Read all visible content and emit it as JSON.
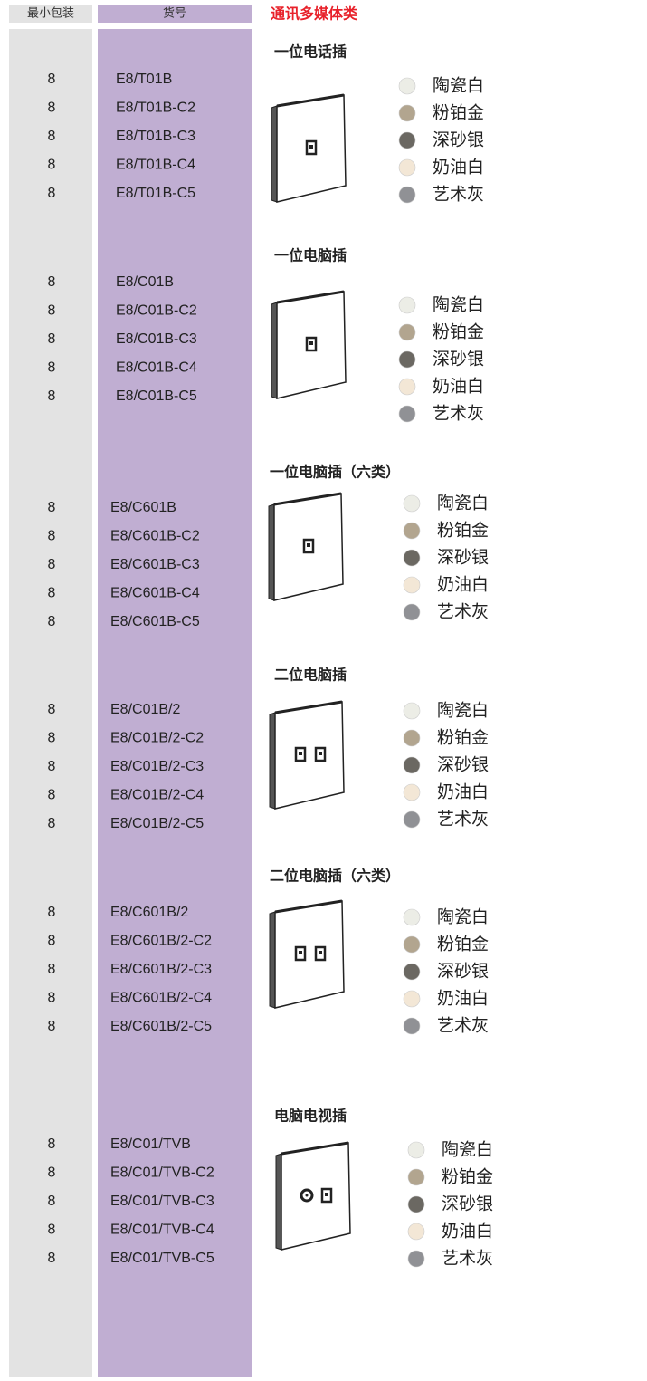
{
  "header": {
    "qty_label": "最小包装",
    "code_label": "货号",
    "category": "通讯多媒体类"
  },
  "sections": [
    {
      "title": "一位电话插",
      "rows": [
        {
          "qty": 8,
          "code": "E8/T01B"
        },
        {
          "qty": 8,
          "code": "E8/T01B-C2"
        },
        {
          "qty": 8,
          "code": "E8/T01B-C3"
        },
        {
          "qty": 8,
          "code": "E8/T01B-C4"
        },
        {
          "qty": 8,
          "code": "E8/T01B-C5"
        }
      ],
      "colors": [
        {
          "name": "陶瓷白",
          "color": "#ecede6"
        },
        {
          "name": "粉铂金",
          "color": "#b2a58f"
        },
        {
          "name": "深砂银",
          "color": "#6b6862"
        },
        {
          "name": "奶油白",
          "color": "#f3e7d6"
        },
        {
          "name": "艺术灰",
          "color": "#909195"
        }
      ]
    },
    {
      "title": "一位电脑插",
      "rows": [
        {
          "qty": 8,
          "code": "E8/C01B"
        },
        {
          "qty": 8,
          "code": "E8/C01B-C2"
        },
        {
          "qty": 8,
          "code": "E8/C01B-C3"
        },
        {
          "qty": 8,
          "code": "E8/C01B-C4"
        },
        {
          "qty": 8,
          "code": "E8/C01B-C5"
        }
      ],
      "colors": [
        {
          "name": "陶瓷白",
          "color": "#ecede6"
        },
        {
          "name": "粉铂金",
          "color": "#b2a58f"
        },
        {
          "name": "深砂银",
          "color": "#6b6862"
        },
        {
          "name": "奶油白",
          "color": "#f3e7d6"
        },
        {
          "name": "艺术灰",
          "color": "#909195"
        }
      ]
    },
    {
      "title": "一位电脑插（六类）",
      "rows": [
        {
          "qty": 8,
          "code": "E8/C601B"
        },
        {
          "qty": 8,
          "code": "E8/C601B-C2"
        },
        {
          "qty": 8,
          "code": "E8/C601B-C3"
        },
        {
          "qty": 8,
          "code": "E8/C601B-C4"
        },
        {
          "qty": 8,
          "code": "E8/C601B-C5"
        }
      ],
      "colors": [
        {
          "name": "陶瓷白",
          "color": "#ecede6"
        },
        {
          "name": "粉铂金",
          "color": "#b2a58f"
        },
        {
          "name": "深砂银",
          "color": "#6b6862"
        },
        {
          "name": "奶油白",
          "color": "#f3e7d6"
        },
        {
          "name": "艺术灰",
          "color": "#909195"
        }
      ]
    },
    {
      "title": "二位电脑插",
      "rows": [
        {
          "qty": 8,
          "code": "E8/C01B/2"
        },
        {
          "qty": 8,
          "code": "E8/C01B/2-C2"
        },
        {
          "qty": 8,
          "code": "E8/C01B/2-C3"
        },
        {
          "qty": 8,
          "code": "E8/C01B/2-C4"
        },
        {
          "qty": 8,
          "code": "E8/C01B/2-C5"
        }
      ],
      "colors": [
        {
          "name": "陶瓷白",
          "color": "#ecede6"
        },
        {
          "name": "粉铂金",
          "color": "#b2a58f"
        },
        {
          "name": "深砂银",
          "color": "#6b6862"
        },
        {
          "name": "奶油白",
          "color": "#f3e7d6"
        },
        {
          "name": "艺术灰",
          "color": "#909195"
        }
      ]
    },
    {
      "title": "二位电脑插（六类）",
      "rows": [
        {
          "qty": 8,
          "code": "E8/C601B/2"
        },
        {
          "qty": 8,
          "code": "E8/C601B/2-C2"
        },
        {
          "qty": 8,
          "code": "E8/C601B/2-C3"
        },
        {
          "qty": 8,
          "code": "E8/C601B/2-C4"
        },
        {
          "qty": 8,
          "code": "E8/C601B/2-C5"
        }
      ],
      "colors": [
        {
          "name": "陶瓷白",
          "color": "#ecede6"
        },
        {
          "name": "粉铂金",
          "color": "#b2a58f"
        },
        {
          "name": "深砂银",
          "color": "#6b6862"
        },
        {
          "name": "奶油白",
          "color": "#f3e7d6"
        },
        {
          "name": "艺术灰",
          "color": "#909195"
        }
      ]
    },
    {
      "title": "电脑电视插",
      "rows": [
        {
          "qty": 8,
          "code": "E8/C01/TVB"
        },
        {
          "qty": 8,
          "code": "E8/C01/TVB-C2"
        },
        {
          "qty": 8,
          "code": "E8/C01/TVB-C3"
        },
        {
          "qty": 8,
          "code": "E8/C01/TVB-C4"
        },
        {
          "qty": 8,
          "code": "E8/C01/TVB-C5"
        }
      ],
      "colors": [
        {
          "name": "陶瓷白",
          "color": "#ecede6"
        },
        {
          "name": "粉铂金",
          "color": "#b2a58f"
        },
        {
          "name": "深砂银",
          "color": "#6b6862"
        },
        {
          "name": "奶油白",
          "color": "#f3e7d6"
        },
        {
          "name": "艺术灰",
          "color": "#909195"
        }
      ]
    }
  ]
}
